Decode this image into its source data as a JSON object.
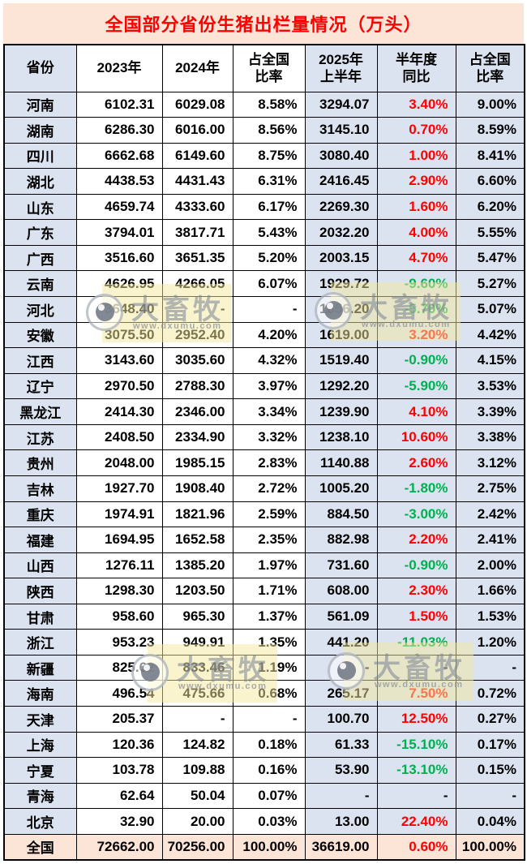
{
  "title": "全国部分省份生猪出栏量情况（万头）",
  "watermark": {
    "brand": "大畜牧",
    "url": "www.dxumu.com"
  },
  "colors": {
    "title_text": "#ff0000",
    "title_bg": "#fce4d6",
    "blue_cell_bg": "#dbe3f0",
    "total_row_bg": "#fce4d6",
    "positive_yoy": "#ff0000",
    "negative_yoy": "#00b050",
    "grid_border": "#000000"
  },
  "chart_data": {
    "type": "table",
    "title": "全国部分省份生猪出栏量情况（万头）",
    "unit": "万头",
    "columns": [
      [
        "省份"
      ],
      [
        "2023年"
      ],
      [
        "2024年"
      ],
      [
        "占全国",
        "比率"
      ],
      [
        "2025年",
        "上半年"
      ],
      [
        "半年度",
        "同比"
      ],
      [
        "占全国",
        "比率"
      ]
    ],
    "rows": [
      [
        "河南",
        "6102.31",
        "6029.08",
        "8.58%",
        "3294.07",
        "3.40%",
        "9.00%"
      ],
      [
        "湖南",
        "6286.30",
        "6016.00",
        "8.56%",
        "3145.10",
        "0.70%",
        "8.59%"
      ],
      [
        "四川",
        "6662.68",
        "6149.60",
        "8.75%",
        "3080.40",
        "1.00%",
        "8.41%"
      ],
      [
        "湖北",
        "4438.53",
        "4431.43",
        "6.31%",
        "2416.45",
        "2.90%",
        "6.60%"
      ],
      [
        "山东",
        "4659.74",
        "4333.60",
        "6.17%",
        "2269.30",
        "1.60%",
        "6.20%"
      ],
      [
        "广东",
        "3794.01",
        "3817.71",
        "5.43%",
        "2032.20",
        "4.00%",
        "5.55%"
      ],
      [
        "广西",
        "3516.60",
        "3651.35",
        "5.20%",
        "2003.15",
        "4.70%",
        "5.47%"
      ],
      [
        "云南",
        "4626.95",
        "4266.05",
        "6.07%",
        "1929.72",
        "-9.60%",
        "5.27%"
      ],
      [
        "河北",
        "3648.40",
        "-",
        "-",
        "1856.20",
        "-5.70%",
        "5.07%"
      ],
      [
        "安徽",
        "3075.50",
        "2952.40",
        "4.20%",
        "1619.00",
        "3.20%",
        "4.42%"
      ],
      [
        "江西",
        "3143.60",
        "3035.60",
        "4.32%",
        "1519.40",
        "-0.90%",
        "4.15%"
      ],
      [
        "辽宁",
        "2970.50",
        "2788.30",
        "3.97%",
        "1292.20",
        "-5.90%",
        "3.53%"
      ],
      [
        "黑龙江",
        "2414.30",
        "2346.00",
        "3.34%",
        "1239.90",
        "4.10%",
        "3.39%"
      ],
      [
        "江苏",
        "2408.50",
        "2334.90",
        "3.32%",
        "1238.10",
        "10.60%",
        "3.38%"
      ],
      [
        "贵州",
        "2048.00",
        "1985.15",
        "2.83%",
        "1140.88",
        "2.60%",
        "3.12%"
      ],
      [
        "吉林",
        "1927.70",
        "1908.40",
        "2.72%",
        "1005.20",
        "-1.80%",
        "2.75%"
      ],
      [
        "重庆",
        "1974.91",
        "1821.96",
        "2.59%",
        "884.50",
        "-3.00%",
        "2.42%"
      ],
      [
        "福建",
        "1694.95",
        "1652.58",
        "2.35%",
        "882.98",
        "2.20%",
        "2.41%"
      ],
      [
        "山西",
        "1276.11",
        "1385.20",
        "1.97%",
        "731.60",
        "-0.90%",
        "2.00%"
      ],
      [
        "陕西",
        "1298.30",
        "1203.50",
        "1.71%",
        "608.00",
        "2.30%",
        "1.66%"
      ],
      [
        "甘肃",
        "958.60",
        "965.30",
        "1.37%",
        "561.09",
        "1.50%",
        "1.53%"
      ],
      [
        "浙江",
        "953.23",
        "949.91",
        "1.35%",
        "441.20",
        "-11.03%",
        "1.20%"
      ],
      [
        "新疆",
        "825.62",
        "833.46",
        "1.19%",
        "-",
        "-",
        "-"
      ],
      [
        "海南",
        "496.54",
        "475.66",
        "0.68%",
        "265.17",
        "7.50%",
        "0.72%"
      ],
      [
        "天津",
        "205.37",
        "-",
        "-",
        "100.70",
        "12.50%",
        "0.27%"
      ],
      [
        "上海",
        "120.36",
        "124.82",
        "0.18%",
        "61.33",
        "-15.10%",
        "0.17%"
      ],
      [
        "宁夏",
        "103.78",
        "109.88",
        "0.16%",
        "53.90",
        "-13.10%",
        "0.15%"
      ],
      [
        "青海",
        "62.64",
        "50.04",
        "0.07%",
        "-",
        "-",
        "-"
      ],
      [
        "北京",
        "32.90",
        "20.00",
        "0.03%",
        "13.00",
        "22.40%",
        "0.04%"
      ]
    ],
    "total_row": [
      "全国",
      "72662.00",
      "70256.00",
      "100.00%",
      "36619.00",
      "0.60%",
      "100.00%"
    ]
  }
}
